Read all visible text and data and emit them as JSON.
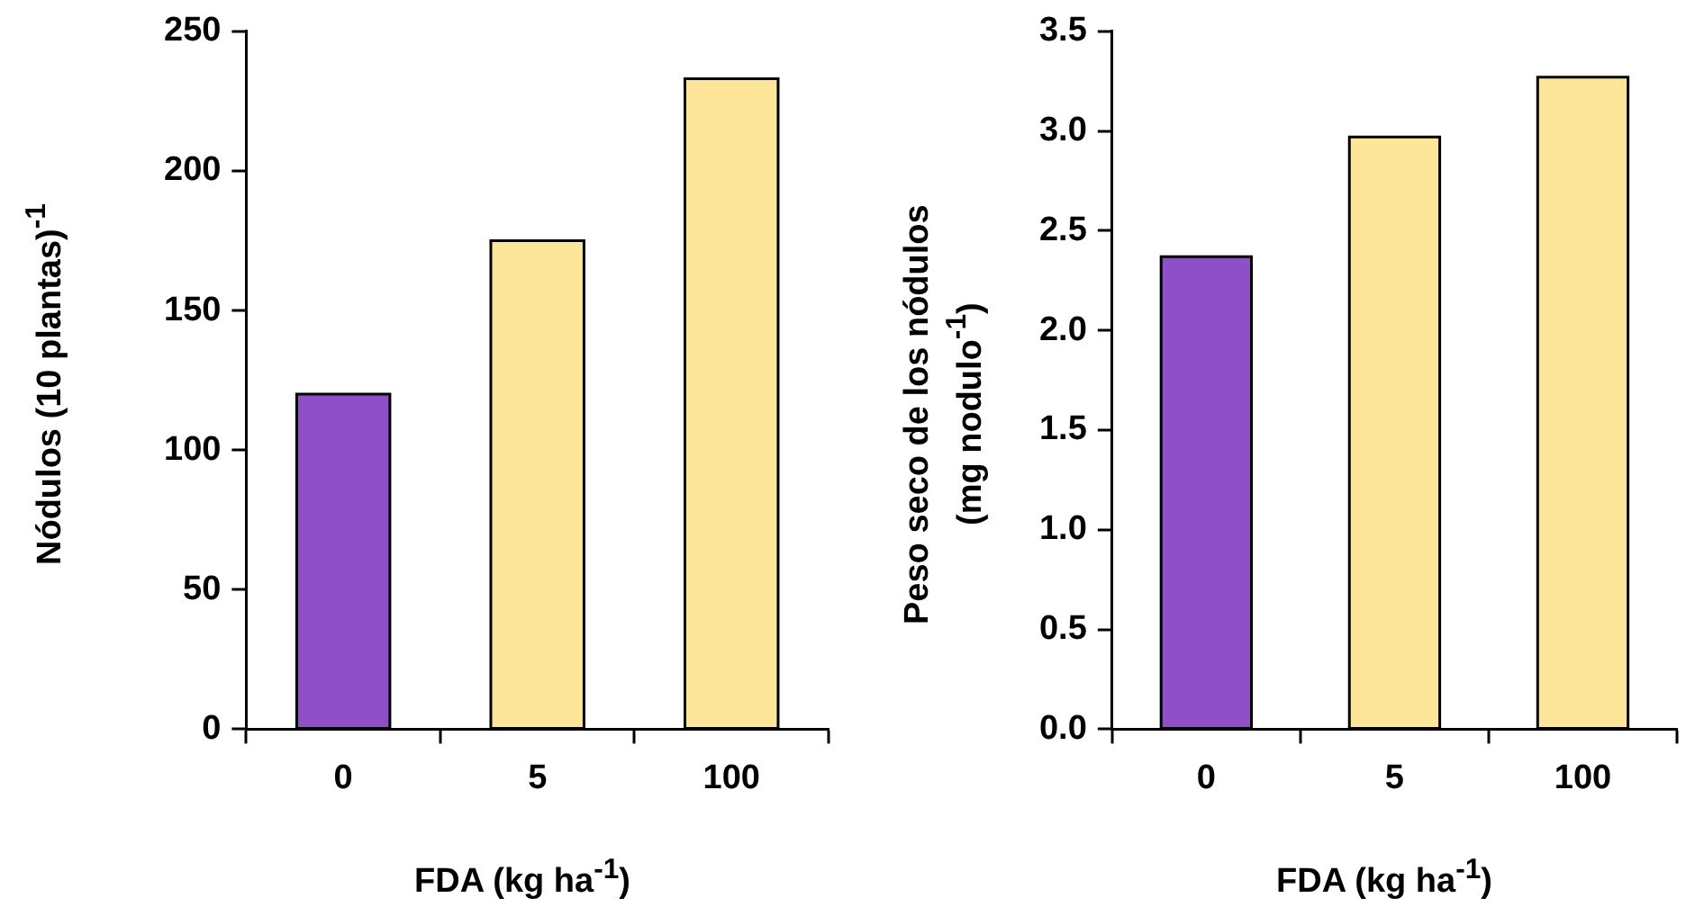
{
  "chart_data": [
    {
      "type": "bar",
      "ylabel": "Nódulos (10 plantas)$^{-1}$",
      "xlabel": "FDA (kg ha$^{-1}$)",
      "categories": [
        "0",
        "5",
        "100"
      ],
      "values": [
        120,
        175,
        233
      ],
      "colors": [
        "#8e4fc8",
        "#fde59a",
        "#fde59a"
      ],
      "ylim": [
        0,
        250
      ],
      "yticks": [
        0,
        50,
        100,
        150,
        200,
        250
      ],
      "grid": false,
      "legend": false
    },
    {
      "type": "bar",
      "ylabel": "Peso seco de los nódulos (mg nodulo$^{-1}$)",
      "xlabel": "FDA (kg ha$^{-1}$)",
      "categories": [
        "0",
        "5",
        "100"
      ],
      "values": [
        2.37,
        2.97,
        3.27
      ],
      "colors": [
        "#8e4fc8",
        "#fde59a",
        "#fde59a"
      ],
      "ylim": [
        0,
        3.5
      ],
      "yticks": [
        {
          "value": 0,
          "label": "0.0"
        },
        {
          "value": 0.5,
          "label": "0.5"
        },
        {
          "value": 1,
          "label": "1.0"
        },
        {
          "value": 1.5,
          "label": "1.5"
        },
        {
          "value": 2,
          "label": "2.0"
        },
        {
          "value": 2.5,
          "label": "2.5"
        },
        {
          "value": 3,
          "label": "3.0"
        },
        {
          "value": 3.5,
          "label": "3.5"
        }
      ],
      "grid": false,
      "legend": false
    }
  ]
}
